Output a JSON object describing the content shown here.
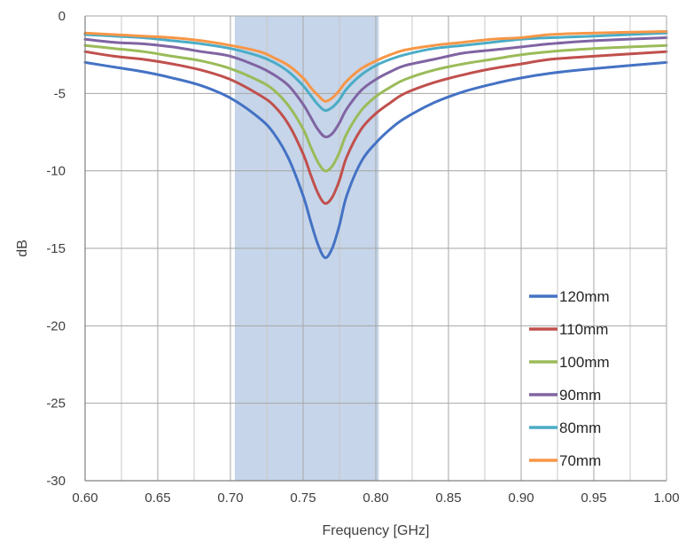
{
  "chart_data": {
    "type": "line",
    "title": "",
    "xlabel": "Frequency [GHz]",
    "ylabel": "dB",
    "xlim": [
      0.6,
      1.0
    ],
    "ylim": [
      -30,
      0
    ],
    "x_ticks": [
      "0.60",
      "0.65",
      "0.70",
      "0.75",
      "0.80",
      "0.85",
      "0.90",
      "0.95",
      "1.00"
    ],
    "y_ticks": [
      "0",
      "-5",
      "-10",
      "-15",
      "-20",
      "-25",
      "-30"
    ],
    "grid": true,
    "legend_position": "bottom-right",
    "highlight_band": {
      "x_start": 0.703,
      "x_end": 0.802,
      "color": "#c6d5e9"
    },
    "x": [
      0.6,
      0.62,
      0.64,
      0.66,
      0.68,
      0.7,
      0.72,
      0.73,
      0.74,
      0.75,
      0.755,
      0.76,
      0.765,
      0.77,
      0.775,
      0.78,
      0.79,
      0.8,
      0.81,
      0.82,
      0.84,
      0.86,
      0.88,
      0.9,
      0.92,
      0.95,
      1.0
    ],
    "series": [
      {
        "name": "120mm",
        "color": "#4472c4",
        "values": [
          -3.0,
          -3.3,
          -3.6,
          -4.0,
          -4.5,
          -5.3,
          -6.6,
          -7.6,
          -9.2,
          -11.6,
          -13.2,
          -14.7,
          -15.6,
          -15.0,
          -13.5,
          -11.6,
          -9.4,
          -8.2,
          -7.3,
          -6.6,
          -5.6,
          -4.9,
          -4.4,
          -4.0,
          -3.7,
          -3.4,
          -3.0
        ]
      },
      {
        "name": "110mm",
        "color": "#c0504d",
        "values": [
          -2.3,
          -2.6,
          -2.8,
          -3.1,
          -3.5,
          -4.1,
          -5.1,
          -5.8,
          -7.0,
          -8.9,
          -10.2,
          -11.4,
          -12.1,
          -11.7,
          -10.6,
          -9.1,
          -7.3,
          -6.3,
          -5.6,
          -5.0,
          -4.3,
          -3.8,
          -3.4,
          -3.1,
          -2.8,
          -2.6,
          -2.3
        ]
      },
      {
        "name": "100mm",
        "color": "#9bbb59",
        "values": [
          -1.9,
          -2.1,
          -2.3,
          -2.6,
          -2.9,
          -3.4,
          -4.2,
          -4.8,
          -5.8,
          -7.3,
          -8.4,
          -9.4,
          -10.0,
          -9.7,
          -8.8,
          -7.6,
          -6.1,
          -5.2,
          -4.6,
          -4.1,
          -3.5,
          -3.1,
          -2.8,
          -2.5,
          -2.3,
          -2.1,
          -1.9
        ]
      },
      {
        "name": "90mm",
        "color": "#8064a2",
        "values": [
          -1.5,
          -1.7,
          -1.8,
          -2.0,
          -2.3,
          -2.6,
          -3.3,
          -3.8,
          -4.5,
          -5.7,
          -6.5,
          -7.3,
          -7.8,
          -7.6,
          -6.9,
          -6.0,
          -4.8,
          -4.1,
          -3.6,
          -3.2,
          -2.8,
          -2.4,
          -2.2,
          -2.0,
          -1.8,
          -1.6,
          -1.4
        ]
      },
      {
        "name": "80mm",
        "color": "#4bacc6",
        "values": [
          -1.2,
          -1.3,
          -1.4,
          -1.6,
          -1.8,
          -2.1,
          -2.6,
          -3.0,
          -3.6,
          -4.5,
          -5.1,
          -5.7,
          -6.1,
          -5.9,
          -5.4,
          -4.7,
          -3.8,
          -3.2,
          -2.8,
          -2.5,
          -2.1,
          -1.9,
          -1.7,
          -1.5,
          -1.4,
          -1.3,
          -1.1
        ]
      },
      {
        "name": "70mm",
        "color": "#f79646",
        "values": [
          -1.1,
          -1.2,
          -1.3,
          -1.4,
          -1.6,
          -1.9,
          -2.3,
          -2.7,
          -3.2,
          -4.0,
          -4.6,
          -5.1,
          -5.5,
          -5.3,
          -4.8,
          -4.2,
          -3.4,
          -2.9,
          -2.5,
          -2.2,
          -1.9,
          -1.7,
          -1.5,
          -1.4,
          -1.2,
          -1.1,
          -1.0
        ]
      }
    ]
  }
}
